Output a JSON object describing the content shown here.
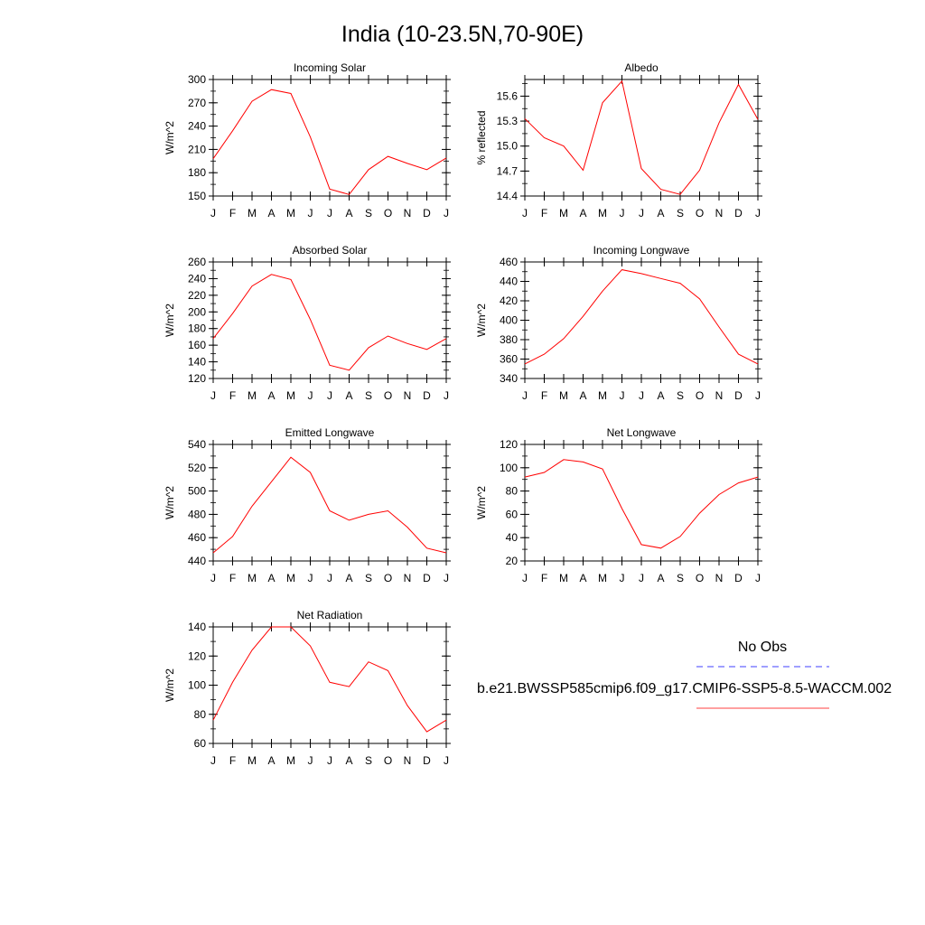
{
  "title": "India (10-23.5N,70-90E)",
  "months": [
    "J",
    "F",
    "M",
    "A",
    "M",
    "J",
    "J",
    "A",
    "S",
    "O",
    "N",
    "D",
    "J"
  ],
  "colors": {
    "model": "#ff0000",
    "obs": "#0000ff",
    "axis": "#000000"
  },
  "chart_data": [
    {
      "type": "line",
      "title": "Incoming Solar",
      "ylabel": "W/m^2",
      "ylim": [
        150,
        300
      ],
      "yticks": [
        "150",
        "180",
        "210",
        "240",
        "270",
        "300"
      ],
      "yticks_values": [
        150,
        180,
        210,
        240,
        270,
        300
      ],
      "x": [
        "J",
        "F",
        "M",
        "A",
        "M",
        "J",
        "J",
        "A",
        "S",
        "O",
        "N",
        "D",
        "J"
      ],
      "series": [
        {
          "values": [
            198,
            234,
            272,
            287,
            282,
            226,
            159,
            152,
            184,
            201,
            192,
            184,
            199
          ]
        }
      ]
    },
    {
      "type": "line",
      "title": "Albedo",
      "ylabel": "% reflected",
      "ylim": [
        14.4,
        15.8
      ],
      "yticks": [
        "14.4",
        "14.7",
        "15.0",
        "15.3",
        "15.6"
      ],
      "yticks_values": [
        14.4,
        14.7,
        15.0,
        15.3,
        15.6
      ],
      "x": [
        "J",
        "F",
        "M",
        "A",
        "M",
        "J",
        "J",
        "A",
        "S",
        "O",
        "N",
        "D",
        "J"
      ],
      "series": [
        {
          "values": [
            15.33,
            15.1,
            15.0,
            14.71,
            15.52,
            15.78,
            14.73,
            14.48,
            14.42,
            14.71,
            15.28,
            15.74,
            15.32
          ]
        }
      ]
    },
    {
      "type": "line",
      "title": "Absorbed Solar",
      "ylabel": "W/m^2",
      "ylim": [
        120,
        260
      ],
      "yticks": [
        "120",
        "140",
        "160",
        "180",
        "200",
        "220",
        "240",
        "260"
      ],
      "yticks_values": [
        120,
        140,
        160,
        180,
        200,
        220,
        240,
        260
      ],
      "x": [
        "J",
        "F",
        "M",
        "A",
        "M",
        "J",
        "J",
        "A",
        "S",
        "O",
        "N",
        "D",
        "J"
      ],
      "series": [
        {
          "values": [
            168,
            198,
            231,
            245,
            239,
            191,
            136,
            130,
            157,
            171,
            162,
            155,
            168
          ]
        }
      ]
    },
    {
      "type": "line",
      "title": "Incoming Longwave",
      "ylabel": "W/m^2",
      "ylim": [
        340,
        460
      ],
      "yticks": [
        "340",
        "360",
        "380",
        "400",
        "420",
        "440",
        "460"
      ],
      "yticks_values": [
        340,
        360,
        380,
        400,
        420,
        440,
        460
      ],
      "x": [
        "J",
        "F",
        "M",
        "A",
        "M",
        "J",
        "J",
        "A",
        "S",
        "O",
        "N",
        "D",
        "J"
      ],
      "series": [
        {
          "values": [
            355,
            365,
            381,
            404,
            430,
            452,
            448,
            443,
            438,
            422,
            393,
            365,
            355
          ]
        }
      ]
    },
    {
      "type": "line",
      "title": "Emitted Longwave",
      "ylabel": "W/m^2",
      "ylim": [
        440,
        540
      ],
      "yticks": [
        "440",
        "460",
        "480",
        "500",
        "520",
        "540"
      ],
      "yticks_values": [
        440,
        460,
        480,
        500,
        520,
        540
      ],
      "x": [
        "J",
        "F",
        "M",
        "A",
        "M",
        "J",
        "J",
        "A",
        "S",
        "O",
        "N",
        "D",
        "J"
      ],
      "series": [
        {
          "values": [
            447,
            461,
            487,
            508,
            529,
            516,
            483,
            475,
            480,
            483,
            469,
            451,
            447
          ]
        }
      ]
    },
    {
      "type": "line",
      "title": "Net Longwave",
      "ylabel": "W/m^2",
      "ylim": [
        20,
        120
      ],
      "yticks": [
        "20",
        "40",
        "60",
        "80",
        "100",
        "120"
      ],
      "yticks_values": [
        20,
        40,
        60,
        80,
        100,
        120
      ],
      "x": [
        "J",
        "F",
        "M",
        "A",
        "M",
        "J",
        "J",
        "A",
        "S",
        "O",
        "N",
        "D",
        "J"
      ],
      "series": [
        {
          "values": [
            92,
            96,
            107,
            105,
            99,
            65,
            34,
            31,
            41,
            61,
            77,
            87,
            92
          ]
        }
      ]
    },
    {
      "type": "line",
      "title": "Net Radiation",
      "ylabel": "W/m^2",
      "ylim": [
        60,
        140
      ],
      "yticks": [
        "60",
        "80",
        "100",
        "120",
        "140"
      ],
      "yticks_values": [
        60,
        80,
        100,
        120,
        140
      ],
      "x": [
        "J",
        "F",
        "M",
        "A",
        "M",
        "J",
        "J",
        "A",
        "S",
        "O",
        "N",
        "D",
        "J"
      ],
      "series": [
        {
          "values": [
            76,
            102,
            124,
            140,
            140,
            127,
            102,
            99,
            116,
            110,
            86,
            68,
            76
          ]
        }
      ]
    }
  ],
  "legend": {
    "obs_label": "No Obs",
    "model_label": "b.e21.BWSSP585cmip6.f09_g17.CMIP6-SSP5-8.5-WACCM.002"
  }
}
